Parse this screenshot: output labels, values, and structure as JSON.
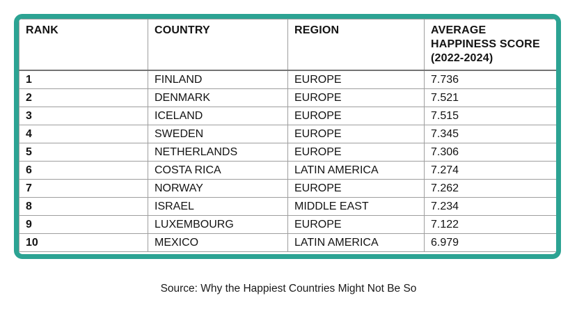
{
  "chart_data": {
    "type": "table",
    "columns": [
      "RANK",
      "COUNTRY",
      "REGION",
      "AVERAGE HAPPINESS SCORE (2022-2024)"
    ],
    "rows": [
      {
        "rank": "1",
        "country": "FINLAND",
        "region": "EUROPE",
        "score": "7.736"
      },
      {
        "rank": "2",
        "country": "DENMARK",
        "region": "EUROPE",
        "score": "7.521"
      },
      {
        "rank": "3",
        "country": "ICELAND",
        "region": "EUROPE",
        "score": "7.515"
      },
      {
        "rank": "4",
        "country": "SWEDEN",
        "region": "EUROPE",
        "score": "7.345"
      },
      {
        "rank": "5",
        "country": "NETHERLANDS",
        "region": "EUROPE",
        "score": "7.306"
      },
      {
        "rank": "6",
        "country": "COSTA RICA",
        "region": "LATIN AMERICA",
        "score": "7.274"
      },
      {
        "rank": "7",
        "country": "NORWAY",
        "region": "EUROPE",
        "score": "7.262"
      },
      {
        "rank": "8",
        "country": "ISRAEL",
        "region": "MIDDLE EAST",
        "score": "7.234"
      },
      {
        "rank": "9",
        "country": "LUXEMBOURG",
        "region": "EUROPE",
        "score": "7.122"
      },
      {
        "rank": "10",
        "country": "MEXICO",
        "region": "LATIN AMERICA",
        "score": "6.979"
      }
    ],
    "source_caption": "Source: Why the Happiest Countries Might Not Be So"
  },
  "colors": {
    "frame_teal": "#2ca393",
    "gridline_gray": "#9e9e9e",
    "header_rule_gray": "#737373",
    "text": "#131313",
    "background": "#ffffff"
  }
}
